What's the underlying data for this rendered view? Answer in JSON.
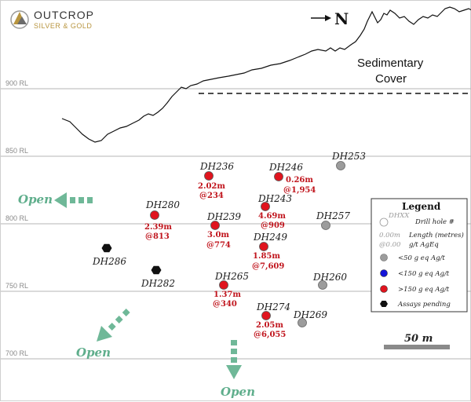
{
  "logo": {
    "line1": "OUTCROP",
    "line2": "SILVER & GOLD",
    "gold_color": "#b8953f"
  },
  "north_label": "N",
  "cover_label": {
    "line1": "Sedimentary",
    "line2": "Cover"
  },
  "rl_levels": [
    {
      "label": "900 RL"
    },
    {
      "label": "850 RL"
    },
    {
      "label": "800 RL"
    },
    {
      "label": "750 RL"
    },
    {
      "label": "700 RL"
    }
  ],
  "holes": [
    {
      "id": "DH236",
      "category": "high",
      "length": "2.02m",
      "grade": "@234"
    },
    {
      "id": "DH246",
      "category": "high",
      "length": "0.26m",
      "grade": "@1,954"
    },
    {
      "id": "DH253",
      "category": "low",
      "length": "",
      "grade": ""
    },
    {
      "id": "DH243",
      "category": "high",
      "length": "4.69m",
      "grade": "@909"
    },
    {
      "id": "DH280",
      "category": "high",
      "length": "2.39m",
      "grade": "@813"
    },
    {
      "id": "DH239",
      "category": "high",
      "length": "3.0m",
      "grade": "@774"
    },
    {
      "id": "DH257",
      "category": "low",
      "length": "",
      "grade": ""
    },
    {
      "id": "DH249",
      "category": "high",
      "length": "1.85m",
      "grade": "@7,609"
    },
    {
      "id": "DH286",
      "category": "pending",
      "length": "",
      "grade": ""
    },
    {
      "id": "DH282",
      "category": "pending",
      "length": "",
      "grade": ""
    },
    {
      "id": "DH265",
      "category": "high",
      "length": "1.37m",
      "grade": "@340"
    },
    {
      "id": "DH260",
      "category": "low",
      "length": "",
      "grade": ""
    },
    {
      "id": "DH274",
      "category": "high",
      "length": "2.05m",
      "grade": "@6,055"
    },
    {
      "id": "DH269",
      "category": "low",
      "length": "",
      "grade": ""
    }
  ],
  "open_label": "Open",
  "legend": {
    "title": "Legend",
    "drill_sample": "DHXX",
    "drill_label": "Drill hole #",
    "len_sample": "0.00m",
    "grade_sample": "@0.00",
    "len_label": "Length (metres)",
    "grade_label": "g/t AgEq",
    "low_label": "<50 g eq Ag/t",
    "mid_label": "<150 g eq Ag/t",
    "high_label": ">150 g eq Ag/t",
    "pending_label": "Assays pending"
  },
  "scale_label": "50 m",
  "colors": {
    "high": "#e0141e",
    "mid": "#1414d8",
    "low": "#9c9c9c",
    "pending": "#111111",
    "open": "#6fb898"
  }
}
